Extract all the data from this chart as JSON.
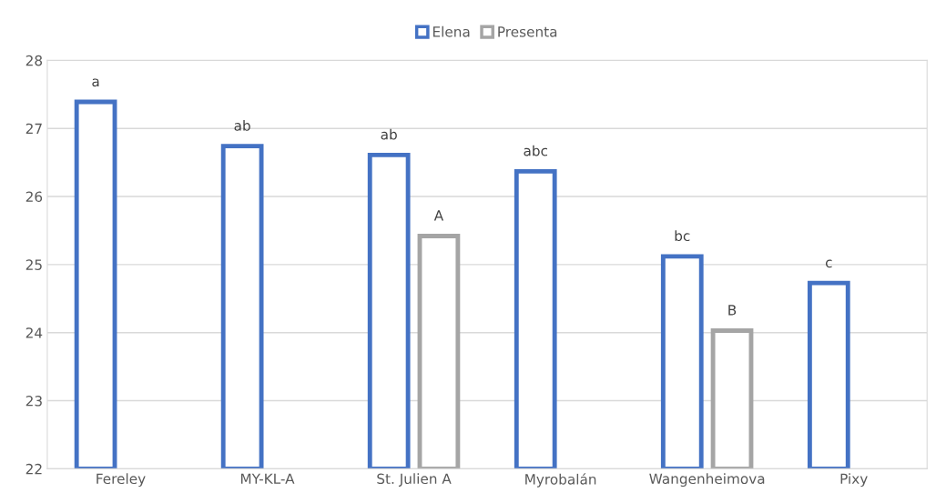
{
  "chart_data": {
    "type": "bar",
    "categories": [
      "Fereley",
      "MY-KL-A",
      "St. Julien A",
      "Myrobalán",
      "Wangenheimova",
      "Pixy"
    ],
    "series": [
      {
        "name": "Elena",
        "color": "#4472c4",
        "values": [
          27.39,
          26.74,
          26.61,
          26.37,
          25.12,
          24.73
        ],
        "value_labels": [
          "a",
          "ab",
          "ab",
          "abc",
          "bc",
          "c"
        ]
      },
      {
        "name": "Presenta",
        "color": "#a5a5a5",
        "values": [
          null,
          null,
          25.42,
          null,
          24.03,
          null
        ],
        "value_labels": [
          null,
          null,
          "A",
          null,
          "B",
          null
        ]
      }
    ],
    "ylim": [
      22,
      28
    ],
    "yticks": [
      22,
      23,
      24,
      25,
      26,
      27,
      28
    ],
    "grid": "y",
    "legend": "top"
  }
}
